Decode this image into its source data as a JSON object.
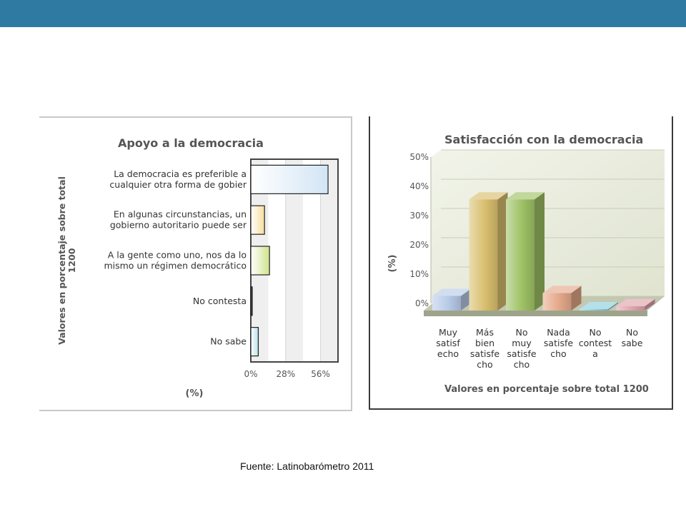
{
  "slide": {
    "source": "Fuente: Latinobarómetro 2011"
  },
  "chart_data": [
    {
      "type": "bar",
      "orientation": "horizontal",
      "title": "Apoyo a la democracia",
      "ylabel_lines": [
        "Valores en porcentaje sobre total",
        "1200"
      ],
      "xlabel": "(%)",
      "xlim": [
        0,
        70
      ],
      "tick_labels": [
        "0%",
        "28%",
        "56%"
      ],
      "categories": [
        {
          "lines": [
            "La democracia es preferible a",
            "cualquier otra forma de gobier"
          ]
        },
        {
          "lines": [
            "En algunas circunstancias, un",
            "gobierno autoritario puede ser"
          ]
        },
        {
          "lines": [
            "A la gente como uno, nos da lo",
            "mismo un régimen democrático"
          ]
        },
        {
          "lines": [
            "No contesta"
          ]
        },
        {
          "lines": [
            "No sabe"
          ]
        }
      ],
      "values": [
        62,
        11,
        15,
        1,
        6
      ],
      "colors": [
        "#d2e5f5",
        "#f6dd9a",
        "#cfe38c",
        "#444444",
        "#b9e3ea"
      ]
    },
    {
      "type": "bar",
      "style": "3d",
      "title": "Satisfacción con la democracia",
      "ylabel": "(%)",
      "xlabel": "Valores en porcentaje sobre total 1200",
      "ylim": [
        0,
        50
      ],
      "tick_labels": [
        "0%",
        "10%",
        "20%",
        "30%",
        "40%",
        "50%"
      ],
      "categories": [
        {
          "lines": [
            "Muy",
            "satisf",
            "echo"
          ]
        },
        {
          "lines": [
            "Más",
            "bien",
            "satisfe",
            "cho"
          ]
        },
        {
          "lines": [
            "No",
            "muy",
            "satisfe",
            "cho"
          ]
        },
        {
          "lines": [
            "Nada",
            "satisfe",
            "cho"
          ]
        },
        {
          "lines": [
            "No",
            "contest",
            "a"
          ]
        },
        {
          "lines": [
            "No",
            "sabe"
          ]
        }
      ],
      "values": [
        5,
        38,
        38,
        6,
        0.5,
        1.5
      ],
      "colors": [
        "#b8cbe8",
        "#d9bf6e",
        "#9fc266",
        "#e5a98b",
        "#8fd0dd",
        "#e0a4ae"
      ]
    }
  ]
}
